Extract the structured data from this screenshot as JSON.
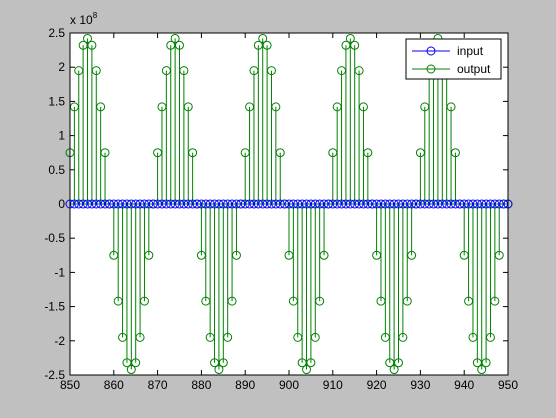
{
  "chart_data": {
    "type": "stem",
    "title": "",
    "xlabel": "",
    "ylabel": "",
    "xlim": [
      850,
      950
    ],
    "ylim": [
      -2.5,
      2.5
    ],
    "y_multiplier_label": "x 10",
    "y_multiplier_exponent": "8",
    "x_ticks": [
      "850",
      "860",
      "870",
      "880",
      "890",
      "900",
      "910",
      "920",
      "930",
      "940",
      "950"
    ],
    "y_ticks": [
      "-2.5",
      "-2",
      "-1.5",
      "-1",
      "-0.5",
      "0",
      "0.5",
      "1",
      "1.5",
      "2",
      "2.5"
    ],
    "x_tick_values": [
      850,
      860,
      870,
      880,
      890,
      900,
      910,
      920,
      930,
      940,
      950
    ],
    "y_tick_values": [
      -2.5,
      -2,
      -1.5,
      -1,
      -0.5,
      0,
      0.5,
      1,
      1.5,
      2,
      2.5
    ],
    "grid": false,
    "legend_position": "top-right",
    "series": [
      {
        "name": "input",
        "color": "#0000ff",
        "x_start": 850,
        "x_step": 1,
        "values": [
          0,
          0,
          0,
          0,
          0,
          0,
          0,
          0,
          0,
          0,
          0,
          0,
          0,
          0,
          0,
          0,
          0,
          0,
          0,
          0,
          0,
          0,
          0,
          0,
          0,
          0,
          0,
          0,
          0,
          0,
          0,
          0,
          0,
          0,
          0,
          0,
          0,
          0,
          0,
          0,
          0,
          0,
          0,
          0,
          0,
          0,
          0,
          0,
          0,
          0,
          0,
          0,
          0,
          0,
          0,
          0,
          0,
          0,
          0,
          0,
          0,
          0,
          0,
          0,
          0,
          0,
          0,
          0,
          0,
          0,
          0,
          0,
          0,
          0,
          0,
          0,
          0,
          0,
          0,
          0,
          0,
          0,
          0,
          0,
          0,
          0,
          0,
          0,
          0,
          0,
          0,
          0,
          0,
          0,
          0,
          0,
          0,
          0,
          0,
          0,
          0
        ]
      },
      {
        "name": "output",
        "color": "#008000",
        "x_start": 850,
        "x_step": 1,
        "values": [
          0.75,
          1.42,
          1.95,
          2.32,
          2.42,
          2.32,
          1.95,
          1.42,
          0.75,
          0,
          -0.75,
          -1.42,
          -1.95,
          -2.32,
          -2.42,
          -2.32,
          -1.95,
          -1.42,
          -0.75,
          0,
          0.75,
          1.42,
          1.95,
          2.32,
          2.42,
          2.32,
          1.95,
          1.42,
          0.75,
          0,
          -0.75,
          -1.42,
          -1.95,
          -2.32,
          -2.42,
          -2.32,
          -1.95,
          -1.42,
          -0.75,
          0,
          0.75,
          1.42,
          1.95,
          2.32,
          2.42,
          2.32,
          1.95,
          1.42,
          0.75,
          0,
          -0.75,
          -1.42,
          -1.95,
          -2.32,
          -2.42,
          -2.32,
          -1.95,
          -1.42,
          -0.75,
          0,
          0.75,
          1.42,
          1.95,
          2.32,
          2.42,
          2.32,
          1.95,
          1.42,
          0.75,
          0,
          -0.75,
          -1.42,
          -1.95,
          -2.32,
          -2.42,
          -2.32,
          -1.95,
          -1.42,
          -0.75,
          0,
          0.75,
          1.42,
          1.95,
          2.32,
          2.42,
          2.32,
          1.95,
          1.42,
          0.75,
          0,
          -0.75,
          -1.42,
          -1.95,
          -2.32,
          -2.42,
          -2.32,
          -1.95,
          -1.42,
          -0.75,
          0,
          0
        ]
      }
    ]
  }
}
